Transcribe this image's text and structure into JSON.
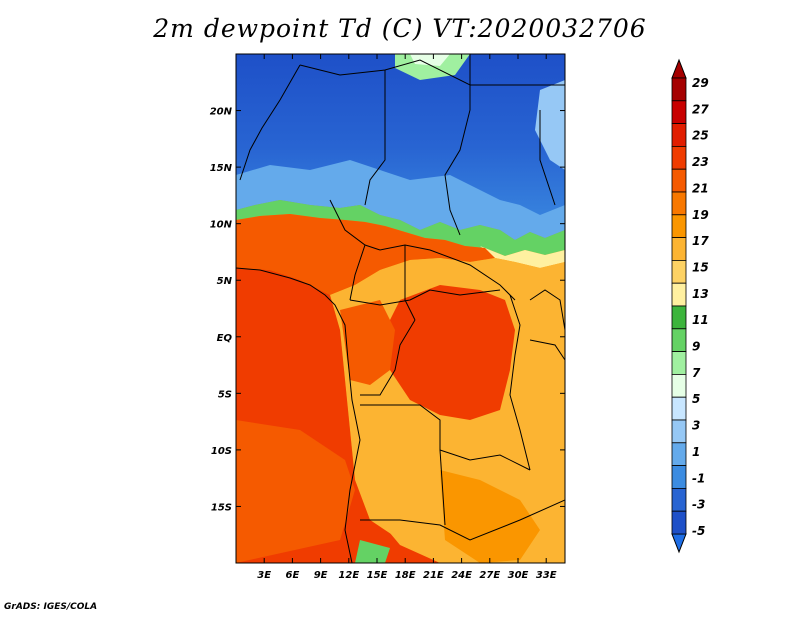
{
  "title": "2m dewpoint Td (C) VT:2020032706",
  "credit": "GrADS: IGES/COLA",
  "map": {
    "lon_range": [
      0,
      35
    ],
    "lat_range": [
      -20,
      25
    ],
    "lon_ticks": [
      3,
      6,
      9,
      12,
      15,
      18,
      21,
      24,
      27,
      30,
      33
    ],
    "lon_tick_labels": [
      "3E",
      "6E",
      "9E",
      "12E",
      "15E",
      "18E",
      "21E",
      "24E",
      "27E",
      "30E",
      "33E"
    ],
    "lat_ticks": [
      20,
      15,
      10,
      5,
      0,
      -5,
      -10,
      -15
    ],
    "lat_tick_labels": [
      "20N",
      "15N",
      "10N",
      "5N",
      "EQ",
      "5S",
      "10S",
      "15S"
    ]
  },
  "colorbar": {
    "labels": [
      "29",
      "27",
      "25",
      "23",
      "21",
      "19",
      "17",
      "15",
      "13",
      "11",
      "9",
      "7",
      "5",
      "3",
      "1",
      "-1",
      "-3",
      "-5"
    ],
    "colors": [
      "#a50000",
      "#c80000",
      "#e11e00",
      "#f03c00",
      "#f55a00",
      "#f87800",
      "#fa9600",
      "#fcb432",
      "#fdd264",
      "#fff0a0",
      "#3cb43c",
      "#64d264",
      "#a0f0a0",
      "#e6ffe6",
      "#c8e6ff",
      "#96c8f5",
      "#64aaeb",
      "#3c8ce1",
      "#2864d2",
      "#1e50c8"
    ],
    "top_color": "#a50000",
    "bottom_color": "#1e6ee6"
  }
}
